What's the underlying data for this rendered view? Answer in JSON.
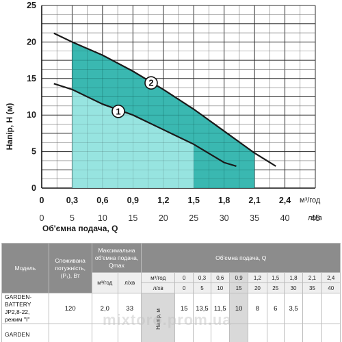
{
  "chart_data": {
    "type": "area",
    "xlabel": "Об'ємна подача, Q",
    "ylabel": "Напір, H (м)",
    "xunit_top": "м³/год",
    "xunit_bottom": "л/хв",
    "x_ticks_top": [
      "0",
      "0,3",
      "0,6",
      "0,9",
      "1,2",
      "1,5",
      "1,8",
      "2,1",
      "2,4"
    ],
    "x_ticks_bottom": [
      "0",
      "5",
      "10",
      "15",
      "20",
      "25",
      "30",
      "35",
      "40",
      "45"
    ],
    "y_ticks": [
      "0",
      "5",
      "10",
      "15",
      "20",
      "25"
    ],
    "xlim": [
      0,
      45
    ],
    "ylim": [
      0,
      25
    ],
    "grid": true,
    "series": [
      {
        "name": "1",
        "x": [
          2,
          5,
          10,
          15,
          20,
          25,
          30,
          32
        ],
        "y": [
          14.3,
          13.5,
          11.5,
          10,
          8,
          6,
          3.5,
          3
        ],
        "fill_range": [
          5,
          25
        ],
        "fill_color": "#a8ebe9",
        "line_color": "#1a1a1a"
      },
      {
        "name": "2",
        "x": [
          2,
          5,
          10,
          15,
          20,
          25,
          30,
          35,
          38.5
        ],
        "y": [
          21.2,
          20,
          18.2,
          16,
          13.5,
          10.8,
          7.8,
          4.8,
          3
        ],
        "fill_range": [
          5,
          35
        ],
        "fill_color": "#2fb4ad",
        "line_color": "#1a1a1a"
      }
    ],
    "markers": [
      {
        "label": "1",
        "x": 12.6,
        "y": 10.5
      },
      {
        "label": "2",
        "x": 18,
        "y": 14.4
      }
    ]
  },
  "table": {
    "headers": {
      "model": "Модель",
      "power": "Споживана потужність, (P₁), Вт",
      "maxflow": "Максимальна об'ємна подача, Qmax",
      "flow": "Об'ємна подача, Q"
    },
    "units": {
      "m3h": "м³/год",
      "lmin": "л/хв"
    },
    "flow_m3h": [
      "0",
      "0,3",
      "0,6",
      "0,9",
      "1,2",
      "1,5",
      "1,8",
      "2,1",
      "2,4"
    ],
    "flow_lmin": [
      "0",
      "5",
      "10",
      "15",
      "20",
      "25",
      "30",
      "35",
      "40"
    ],
    "vertical_label": "Напір, м",
    "rows": [
      {
        "model": "GARDEN-BATTERY JP2,8-22, режим \"I\"",
        "power": "120",
        "q_m3h": "2,0",
        "q_lmin": "33",
        "head": [
          "15",
          "13,5",
          "11,5",
          "10",
          "8",
          "6",
          "3,5",
          "",
          ""
        ]
      },
      {
        "model": "GARDEN",
        "power": "",
        "q_m3h": "",
        "q_lmin": "",
        "head": [
          "",
          "",
          "",
          "",
          "",
          "",
          "",
          "",
          ""
        ]
      }
    ]
  },
  "watermark": "mixtoro.prom.ua"
}
